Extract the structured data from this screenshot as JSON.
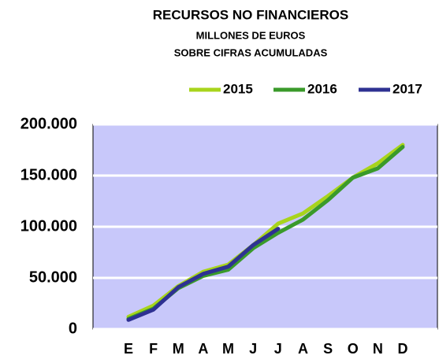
{
  "chart_data": {
    "type": "line",
    "title": "RECURSOS NO FINANCIEROS",
    "subtitle": [
      "MILLONES DE EUROS",
      "SOBRE CIFRAS ACUMULADAS"
    ],
    "categories": [
      "E",
      "F",
      "M",
      "A",
      "M",
      "J",
      "J",
      "A",
      "S",
      "O",
      "N",
      "D"
    ],
    "series": [
      {
        "name": "2015",
        "color": "#a8d41c",
        "values": [
          12000,
          23000,
          42000,
          56000,
          63000,
          82000,
          103000,
          113000,
          130000,
          148000,
          162000,
          180000
        ]
      },
      {
        "name": "2016",
        "color": "#3a9a2a",
        "values": [
          10000,
          20000,
          40000,
          52000,
          58000,
          79000,
          94000,
          107000,
          126000,
          148000,
          157000,
          178000
        ]
      },
      {
        "name": "2017",
        "color": "#2e3192",
        "values": [
          9000,
          19000,
          41000,
          54000,
          61000,
          82000,
          98000,
          null,
          null,
          null,
          null,
          null
        ]
      }
    ],
    "ylim": [
      0,
      200000
    ],
    "yticks": [
      0,
      {
        "value": 50000,
        "label": "50.000"
      },
      {
        "value": 100000,
        "label": "100.000"
      },
      {
        "value": 150000,
        "label": "150.000"
      },
      {
        "value": 200000,
        "label": "200.000"
      }
    ],
    "grid": true,
    "legend": "top-right"
  }
}
